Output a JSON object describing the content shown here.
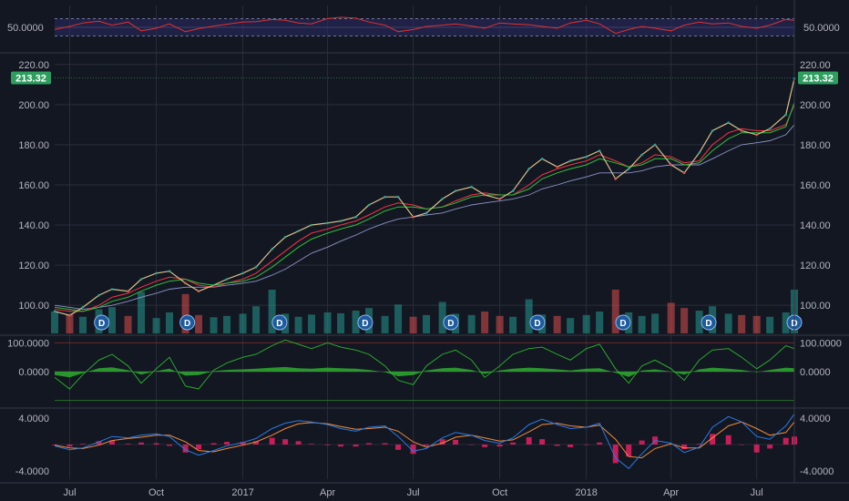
{
  "chart_data": {
    "type": "line",
    "title": "",
    "colors": {
      "background": "#131722",
      "grid": "#2a2e39",
      "up": "#26a69a",
      "down": "#ef5350",
      "price": "#d7c28a",
      "ma_fast": "#f23645",
      "ma_mid": "#2fbf3a",
      "ma_slow": "#8c93c6",
      "rsi": "#e23030",
      "rsi_band": "#2b2a66",
      "osc": "#2fb52f",
      "macd": "#2a7be4",
      "signal": "#f08c3a",
      "histogram": "#e91e63",
      "price_tag": "#2e9e5f",
      "dividend_marker": "#1e5a9e"
    },
    "x_axis": {
      "labels": [
        "Jul",
        "Oct",
        "2017",
        "Apr",
        "Jul",
        "Oct",
        "2018",
        "Apr",
        "Jul"
      ],
      "dates": [
        "2016-07-01",
        "2016-10-01",
        "2017-01-01",
        "2017-04-01",
        "2017-07-01",
        "2017-10-01",
        "2018-01-01",
        "2018-04-01",
        "2018-07-01"
      ],
      "range": [
        "2016-06-15",
        "2018-08-10"
      ]
    },
    "dividend_markers": {
      "label": "D",
      "dates": [
        "2016-08-04",
        "2016-11-03",
        "2017-02-09",
        "2017-05-11",
        "2017-08-10",
        "2017-11-10",
        "2018-02-09",
        "2018-05-11",
        "2018-08-10"
      ]
    },
    "rsi_panel": {
      "label": "50.0000",
      "ylim": [
        0,
        100
      ],
      "upper_band": 70,
      "lower_band": 30,
      "x": [
        "2016-06-15",
        "2016-07-01",
        "2016-07-15",
        "2016-08-01",
        "2016-08-15",
        "2016-09-01",
        "2016-09-15",
        "2016-10-01",
        "2016-10-15",
        "2016-11-01",
        "2016-11-15",
        "2016-12-01",
        "2016-12-15",
        "2017-01-01",
        "2017-01-15",
        "2017-02-01",
        "2017-02-15",
        "2017-03-01",
        "2017-03-15",
        "2017-04-01",
        "2017-04-15",
        "2017-05-01",
        "2017-05-15",
        "2017-06-01",
        "2017-06-15",
        "2017-07-01",
        "2017-07-15",
        "2017-08-01",
        "2017-08-15",
        "2017-09-01",
        "2017-09-15",
        "2017-10-01",
        "2017-10-15",
        "2017-11-01",
        "2017-11-15",
        "2017-12-01",
        "2017-12-15",
        "2018-01-01",
        "2018-01-15",
        "2018-02-01",
        "2018-02-15",
        "2018-03-01",
        "2018-03-15",
        "2018-04-01",
        "2018-04-15",
        "2018-05-01",
        "2018-05-15",
        "2018-06-01",
        "2018-06-15",
        "2018-07-01",
        "2018-07-15",
        "2018-08-01",
        "2018-08-10"
      ],
      "values": [
        45,
        52,
        60,
        64,
        55,
        62,
        42,
        48,
        58,
        40,
        47,
        53,
        57,
        62,
        63,
        68,
        66,
        60,
        58,
        70,
        73,
        71,
        62,
        55,
        40,
        45,
        52,
        55,
        58,
        53,
        48,
        60,
        58,
        56,
        52,
        48,
        60,
        66,
        58,
        36,
        45,
        52,
        48,
        42,
        55,
        62,
        58,
        60,
        52,
        48,
        55,
        68,
        66
      ]
    },
    "price_panel": {
      "ylim": [
        86,
        224
      ],
      "ticks": [
        "220.00",
        "200.00",
        "180.00",
        "160.00",
        "140.00",
        "120.00",
        "100.00"
      ],
      "tick_values": [
        220,
        200,
        180,
        160,
        140,
        120,
        100
      ],
      "last_price": "213.32",
      "x": [
        "2016-06-15",
        "2016-07-01",
        "2016-07-15",
        "2016-08-01",
        "2016-08-15",
        "2016-09-01",
        "2016-09-15",
        "2016-10-01",
        "2016-10-15",
        "2016-11-01",
        "2016-11-15",
        "2016-12-01",
        "2016-12-15",
        "2017-01-01",
        "2017-01-15",
        "2017-02-01",
        "2017-02-15",
        "2017-03-01",
        "2017-03-15",
        "2017-04-01",
        "2017-04-15",
        "2017-05-01",
        "2017-05-15",
        "2017-06-01",
        "2017-06-15",
        "2017-07-01",
        "2017-07-15",
        "2017-08-01",
        "2017-08-15",
        "2017-09-01",
        "2017-09-15",
        "2017-10-01",
        "2017-10-15",
        "2017-11-01",
        "2017-11-15",
        "2017-12-01",
        "2017-12-15",
        "2018-01-01",
        "2018-01-15",
        "2018-02-01",
        "2018-02-15",
        "2018-03-01",
        "2018-03-15",
        "2018-04-01",
        "2018-04-15",
        "2018-05-01",
        "2018-05-15",
        "2018-06-01",
        "2018-06-15",
        "2018-07-01",
        "2018-07-15",
        "2018-08-01",
        "2018-08-10"
      ],
      "close": [
        97,
        95,
        99,
        105,
        108,
        107,
        113,
        116,
        117,
        111,
        107,
        110,
        113,
        116,
        119,
        128,
        134,
        137,
        140,
        141,
        142,
        144,
        150,
        154,
        154,
        144,
        146,
        153,
        157,
        159,
        155,
        153,
        157,
        168,
        173,
        169,
        172,
        174,
        177,
        163,
        168,
        175,
        180,
        170,
        166,
        176,
        187,
        191,
        187,
        185,
        188,
        195,
        213
      ],
      "ma_fast": [
        98,
        97,
        97,
        100,
        104,
        106,
        109,
        112,
        114,
        113,
        110,
        109,
        111,
        113,
        116,
        122,
        127,
        132,
        136,
        138,
        140,
        142,
        145,
        149,
        151,
        150,
        148,
        149,
        152,
        155,
        156,
        155,
        155,
        160,
        165,
        168,
        170,
        172,
        175,
        172,
        169,
        171,
        175,
        174,
        171,
        172,
        180,
        186,
        188,
        187,
        187,
        190,
        200
      ],
      "ma_mid": [
        99,
        98,
        97,
        99,
        102,
        104,
        107,
        110,
        112,
        113,
        111,
        110,
        111,
        112,
        114,
        119,
        124,
        129,
        133,
        136,
        138,
        140,
        143,
        147,
        149,
        149,
        148,
        149,
        151,
        154,
        155,
        155,
        155,
        158,
        163,
        166,
        168,
        170,
        173,
        171,
        169,
        170,
        173,
        173,
        170,
        171,
        177,
        183,
        186,
        186,
        186,
        189,
        201
      ],
      "ma_slow": [
        100,
        99,
        98,
        99,
        100,
        102,
        104,
        106,
        108,
        109,
        109,
        109,
        110,
        111,
        112,
        115,
        118,
        122,
        126,
        129,
        132,
        135,
        138,
        141,
        143,
        144,
        145,
        146,
        148,
        150,
        151,
        152,
        153,
        155,
        158,
        160,
        162,
        164,
        166,
        166,
        166,
        167,
        169,
        170,
        170,
        170,
        173,
        177,
        180,
        181,
        182,
        185,
        190
      ],
      "volume": [
        50,
        44,
        38,
        55,
        60,
        40,
        95,
        35,
        48,
        90,
        42,
        37,
        40,
        45,
        62,
        100,
        45,
        38,
        43,
        48,
        46,
        52,
        58,
        40,
        66,
        38,
        42,
        72,
        45,
        42,
        50,
        40,
        38,
        78,
        43,
        40,
        35,
        42,
        50,
        100,
        48,
        40,
        45,
        70,
        58,
        52,
        62,
        45,
        42,
        40,
        38,
        48,
        100
      ]
    },
    "oscillator_panel": {
      "ylim": [
        -120,
        120
      ],
      "ticks": [
        "100.0000",
        "0.0000"
      ],
      "tick_values": [
        100,
        0
      ],
      "upper_line": 100,
      "lower_line": -100,
      "x": [
        "2016-06-15",
        "2016-07-01",
        "2016-07-15",
        "2016-08-01",
        "2016-08-15",
        "2016-09-01",
        "2016-09-15",
        "2016-10-01",
        "2016-10-15",
        "2016-11-01",
        "2016-11-15",
        "2016-12-01",
        "2016-12-15",
        "2017-01-01",
        "2017-01-15",
        "2017-02-01",
        "2017-02-15",
        "2017-03-01",
        "2017-03-15",
        "2017-04-01",
        "2017-04-15",
        "2017-05-01",
        "2017-05-15",
        "2017-06-01",
        "2017-06-15",
        "2017-07-01",
        "2017-07-15",
        "2017-08-01",
        "2017-08-15",
        "2017-09-01",
        "2017-09-15",
        "2017-10-01",
        "2017-10-15",
        "2017-11-01",
        "2017-11-15",
        "2017-12-01",
        "2017-12-15",
        "2018-01-01",
        "2018-01-15",
        "2018-02-01",
        "2018-02-15",
        "2018-03-01",
        "2018-03-15",
        "2018-04-01",
        "2018-04-15",
        "2018-05-01",
        "2018-05-15",
        "2018-06-01",
        "2018-06-15",
        "2018-07-01",
        "2018-07-15",
        "2018-08-01",
        "2018-08-10"
      ],
      "line": [
        -20,
        -60,
        -10,
        40,
        60,
        20,
        -40,
        10,
        50,
        -50,
        -60,
        5,
        30,
        50,
        60,
        90,
        110,
        95,
        80,
        100,
        85,
        75,
        60,
        20,
        -30,
        -45,
        20,
        60,
        75,
        40,
        -20,
        20,
        60,
        80,
        85,
        60,
        40,
        80,
        95,
        10,
        -40,
        20,
        40,
        10,
        -30,
        40,
        75,
        80,
        50,
        10,
        40,
        90,
        80
      ],
      "area": [
        -12,
        -20,
        -5,
        12,
        15,
        5,
        -10,
        2,
        10,
        -14,
        -12,
        2,
        6,
        8,
        10,
        14,
        16,
        12,
        10,
        14,
        12,
        10,
        6,
        -2,
        -16,
        -12,
        4,
        12,
        14,
        6,
        -8,
        4,
        10,
        14,
        12,
        8,
        4,
        10,
        12,
        -4,
        -18,
        4,
        8,
        0,
        -10,
        8,
        14,
        10,
        6,
        -2,
        6,
        14,
        12
      ]
    },
    "macd_panel": {
      "ylim": [
        -5.2,
        5.2
      ],
      "ticks": [
        "4.0000",
        "-4.0000"
      ],
      "tick_values": [
        4,
        -4
      ],
      "x": [
        "2016-06-15",
        "2016-07-01",
        "2016-07-15",
        "2016-08-01",
        "2016-08-15",
        "2016-09-01",
        "2016-09-15",
        "2016-10-01",
        "2016-10-15",
        "2016-11-01",
        "2016-11-15",
        "2016-12-01",
        "2016-12-15",
        "2017-01-01",
        "2017-01-15",
        "2017-02-01",
        "2017-02-15",
        "2017-03-01",
        "2017-03-15",
        "2017-04-01",
        "2017-04-15",
        "2017-05-01",
        "2017-05-15",
        "2017-06-01",
        "2017-06-15",
        "2017-07-01",
        "2017-07-15",
        "2017-08-01",
        "2017-08-15",
        "2017-09-01",
        "2017-09-15",
        "2017-10-01",
        "2017-10-15",
        "2017-11-01",
        "2017-11-15",
        "2017-12-01",
        "2017-12-15",
        "2018-01-01",
        "2018-01-15",
        "2018-02-01",
        "2018-02-15",
        "2018-03-01",
        "2018-03-15",
        "2018-04-01",
        "2018-04-15",
        "2018-05-01",
        "2018-05-15",
        "2018-06-01",
        "2018-06-15",
        "2018-07-01",
        "2018-07-15",
        "2018-08-01",
        "2018-08-10"
      ],
      "macd": [
        -0.2,
        -0.8,
        -0.5,
        0.4,
        1.2,
        1.0,
        1.4,
        1.6,
        1.2,
        -0.8,
        -1.6,
        -0.9,
        -0.2,
        0.3,
        0.9,
        2.4,
        3.2,
        3.6,
        3.4,
        3.0,
        2.4,
        2.0,
        2.6,
        2.8,
        1.2,
        -1.0,
        -0.6,
        1.0,
        1.8,
        1.4,
        0.6,
        0.2,
        1.0,
        3.0,
        3.8,
        3.0,
        2.4,
        2.6,
        3.2,
        -2.0,
        -3.6,
        -1.4,
        0.6,
        0.2,
        -1.2,
        -0.4,
        2.6,
        4.2,
        3.4,
        1.2,
        0.8,
        2.8,
        4.6
      ],
      "signal": [
        -0.1,
        -0.5,
        -0.6,
        -0.1,
        0.6,
        0.9,
        1.1,
        1.4,
        1.4,
        0.4,
        -0.9,
        -1.1,
        -0.6,
        -0.1,
        0.4,
        1.4,
        2.4,
        3.1,
        3.3,
        3.1,
        2.7,
        2.3,
        2.4,
        2.6,
        2.0,
        0.4,
        -0.4,
        0.2,
        1.1,
        1.4,
        1.0,
        0.5,
        0.7,
        1.9,
        3.0,
        3.2,
        2.8,
        2.6,
        2.9,
        0.8,
        -1.8,
        -2.0,
        -0.6,
        0.1,
        -0.5,
        -0.5,
        1.0,
        2.8,
        3.4,
        2.4,
        1.4,
        1.8,
        3.4
      ],
      "histogram": [
        -0.1,
        -0.3,
        0.1,
        0.5,
        0.6,
        0.1,
        0.3,
        0.2,
        -0.2,
        -1.2,
        -0.7,
        0.2,
        0.4,
        0.4,
        0.5,
        1.0,
        0.8,
        0.5,
        0.1,
        -0.1,
        -0.3,
        -0.3,
        0.2,
        0.2,
        -0.8,
        -1.4,
        -0.2,
        0.8,
        0.7,
        0.0,
        -0.4,
        -0.3,
        0.3,
        1.1,
        0.8,
        -0.2,
        -0.4,
        0.0,
        0.3,
        -2.8,
        -1.8,
        0.6,
        1.2,
        0.1,
        -0.7,
        0.1,
        1.6,
        1.4,
        0.0,
        -1.2,
        -0.6,
        1.0,
        1.2
      ]
    }
  }
}
